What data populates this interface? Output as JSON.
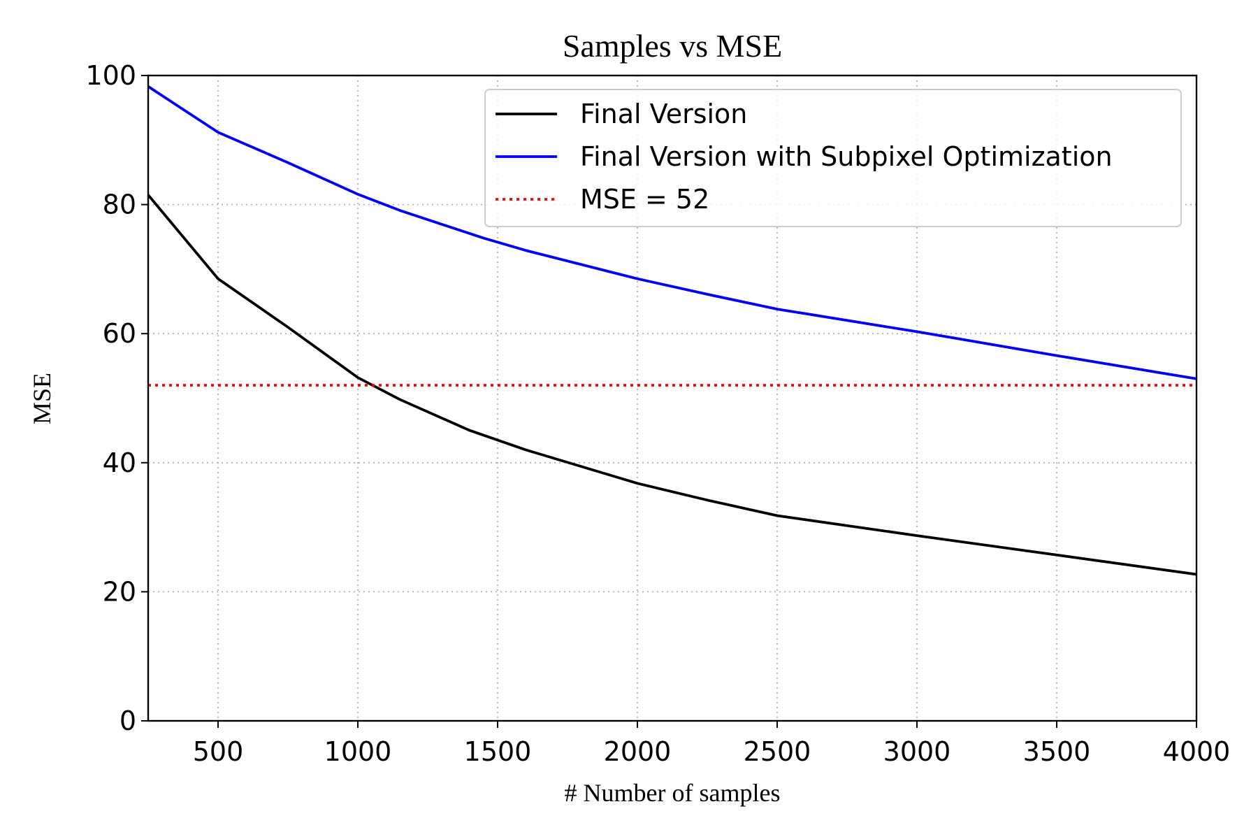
{
  "chart_data": {
    "type": "line",
    "title": "Samples vs MSE",
    "xlabel": "# Number of samples",
    "ylabel": "MSE",
    "xlim": [
      250,
      4000
    ],
    "ylim": [
      0,
      100
    ],
    "xticks": [
      500,
      1000,
      1500,
      2000,
      2500,
      3000,
      3500,
      4000
    ],
    "yticks": [
      0,
      20,
      40,
      60,
      80,
      100
    ],
    "xtick_labels": [
      "500",
      "1000",
      "1500",
      "2000",
      "2500",
      "3000",
      "3500",
      "4000"
    ],
    "ytick_labels": [
      "0",
      "20",
      "40",
      "60",
      "80",
      "100"
    ],
    "grid": true,
    "grid_style": "dotted",
    "legend_position": "top-right",
    "series": [
      {
        "name": "Final Version",
        "color": "#000000",
        "style": "solid",
        "x": [
          250,
          500,
          750,
          1000,
          1150,
          1400,
          1600,
          2000,
          2250,
          2500,
          3000,
          3500,
          4000
        ],
        "y": [
          81.5,
          68.5,
          61.0,
          53.2,
          49.8,
          45.0,
          42.0,
          36.8,
          34.2,
          31.8,
          28.7,
          25.7,
          22.7
        ]
      },
      {
        "name": "Final Version with Subpixel Optimization",
        "color": "#0000ff",
        "style": "solid",
        "x": [
          250,
          500,
          750,
          1000,
          1150,
          1450,
          1600,
          2000,
          2250,
          2500,
          3000,
          3500,
          4000
        ],
        "y": [
          98.3,
          91.2,
          86.5,
          81.6,
          79.1,
          74.8,
          72.9,
          68.5,
          66.1,
          63.8,
          60.3,
          56.6,
          53.0
        ]
      },
      {
        "name": "MSE = 52",
        "color": "#ff0000",
        "style": "dotted",
        "x": [
          250,
          4000
        ],
        "y": [
          52,
          52
        ]
      }
    ]
  }
}
